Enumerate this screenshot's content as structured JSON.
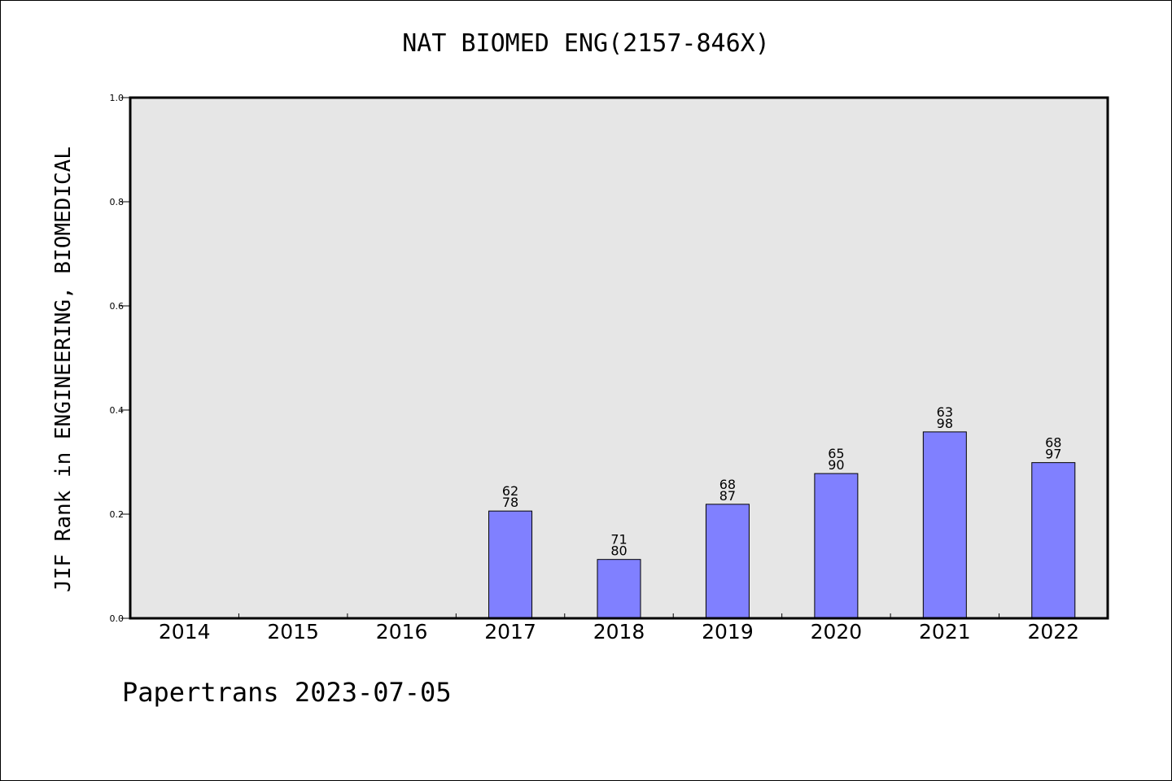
{
  "chart_data": {
    "type": "bar",
    "title": "NAT BIOMED ENG(2157-846X)",
    "ylabel": "JIF Rank in ENGINEERING, BIOMEDICAL",
    "xlabel": "",
    "ylim": [
      0,
      1.0
    ],
    "yticks": [
      "0.0",
      "0.2",
      "0.4",
      "0.6",
      "0.8",
      "1.0"
    ],
    "grid": false,
    "categories": [
      "2014",
      "2015",
      "2016",
      "2017",
      "2018",
      "2019",
      "2020",
      "2021",
      "2022"
    ],
    "values": [
      null,
      null,
      null,
      0.206,
      0.113,
      0.219,
      0.278,
      0.358,
      0.299
    ],
    "rank": [
      null,
      null,
      null,
      "62",
      "71",
      "68",
      "65",
      "63",
      "68"
    ],
    "total": [
      null,
      null,
      null,
      "78",
      "80",
      "87",
      "90",
      "98",
      "97"
    ],
    "bar_color": "#8080ff",
    "plot_background": "#e6e6e6"
  },
  "footer": {
    "note": "Papertrans 2023-07-05"
  }
}
